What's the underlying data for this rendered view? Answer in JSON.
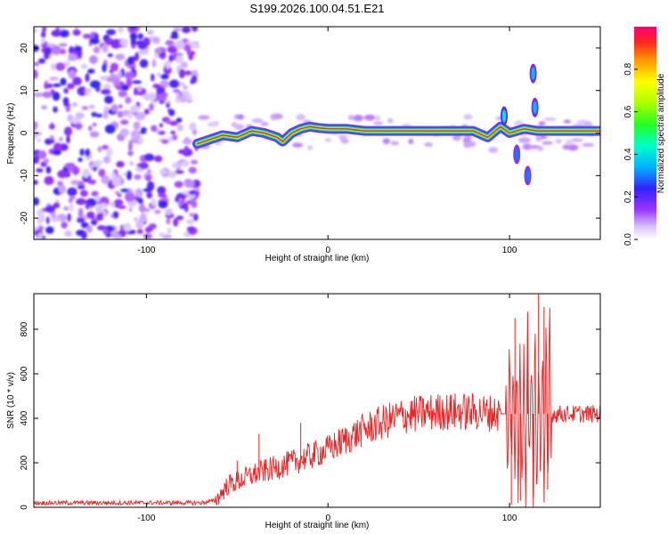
{
  "title": "S199.2026.100.04.51.E21",
  "chart_data": [
    {
      "type": "heatmap",
      "name": "spectrogram",
      "xlabel": "Height of straight line (km)",
      "ylabel": "Frequency (Hz)",
      "xlim": [
        -162,
        150
      ],
      "ylim": [
        -25,
        25
      ],
      "xticks": [
        -100,
        0,
        100
      ],
      "yticks": [
        -20,
        -10,
        0,
        10,
        20
      ],
      "colorbar": {
        "label": "Normalized spectral amplitude",
        "range": [
          0,
          1
        ],
        "ticks": [
          "0.0",
          "0.2",
          "0.4",
          "0.6",
          "0.8"
        ],
        "tick_values": [
          0.0,
          0.2,
          0.4,
          0.6,
          0.8
        ]
      },
      "noise_region_km": [
        -162,
        -72
      ],
      "ridge": [
        {
          "x": -72,
          "y": -2.5
        },
        {
          "x": -65,
          "y": -1.5
        },
        {
          "x": -58,
          "y": -0.5
        },
        {
          "x": -50,
          "y": -1
        },
        {
          "x": -42,
          "y": 0.5
        },
        {
          "x": -35,
          "y": 0
        },
        {
          "x": -28,
          "y": -1
        },
        {
          "x": -25,
          "y": -2
        },
        {
          "x": -20,
          "y": 0
        },
        {
          "x": -15,
          "y": 1
        },
        {
          "x": -10,
          "y": 1.5
        },
        {
          "x": -5,
          "y": 1.2
        },
        {
          "x": 0,
          "y": 1
        },
        {
          "x": 10,
          "y": 1
        },
        {
          "x": 20,
          "y": 0.5
        },
        {
          "x": 40,
          "y": 0.5
        },
        {
          "x": 60,
          "y": 0.5
        },
        {
          "x": 80,
          "y": 0.5
        },
        {
          "x": 88,
          "y": -1
        },
        {
          "x": 95,
          "y": 1.5
        },
        {
          "x": 100,
          "y": 0
        },
        {
          "x": 108,
          "y": 1
        },
        {
          "x": 115,
          "y": 0.5
        },
        {
          "x": 120,
          "y": 0.5
        },
        {
          "x": 150,
          "y": 0.5
        }
      ],
      "spots": [
        {
          "x": 113,
          "y": 14,
          "amp": 0.35
        },
        {
          "x": 97,
          "y": 4,
          "amp": 0.4
        },
        {
          "x": 104,
          "y": -5,
          "amp": 0.3
        },
        {
          "x": 110,
          "y": -10,
          "amp": 0.3
        },
        {
          "x": 114,
          "y": 6,
          "amp": 0.35
        }
      ]
    },
    {
      "type": "line",
      "name": "snr",
      "xlabel": "Height of straight line (km)",
      "ylabel": "SNR (10 * v/v)",
      "xlim": [
        -162,
        150
      ],
      "ylim": [
        0,
        960
      ],
      "xticks": [
        -100,
        0,
        100
      ],
      "yticks": [
        0,
        200,
        400,
        600,
        800
      ],
      "color": "#ee2222",
      "trend": [
        {
          "x": -162,
          "y": 20
        },
        {
          "x": -70,
          "y": 20
        },
        {
          "x": -62,
          "y": 30
        },
        {
          "x": -55,
          "y": 100
        },
        {
          "x": -40,
          "y": 150
        },
        {
          "x": -20,
          "y": 200
        },
        {
          "x": 0,
          "y": 260
        },
        {
          "x": 20,
          "y": 350
        },
        {
          "x": 40,
          "y": 410
        },
        {
          "x": 60,
          "y": 430
        },
        {
          "x": 80,
          "y": 430
        },
        {
          "x": 95,
          "y": 420
        },
        {
          "x": 120,
          "y": 420
        },
        {
          "x": 150,
          "y": 420
        }
      ],
      "spikes": [
        {
          "x": -50,
          "y": 210
        },
        {
          "x": -38,
          "y": 330
        },
        {
          "x": -15,
          "y": 380
        },
        {
          "x": 101,
          "y": 10
        },
        {
          "x": 103,
          "y": 850
        },
        {
          "x": 106,
          "y": 30
        },
        {
          "x": 110,
          "y": 800
        },
        {
          "x": 113,
          "y": 50
        },
        {
          "x": 116,
          "y": 960
        },
        {
          "x": 119,
          "y": 900
        },
        {
          "x": 121,
          "y": 80
        }
      ]
    }
  ]
}
